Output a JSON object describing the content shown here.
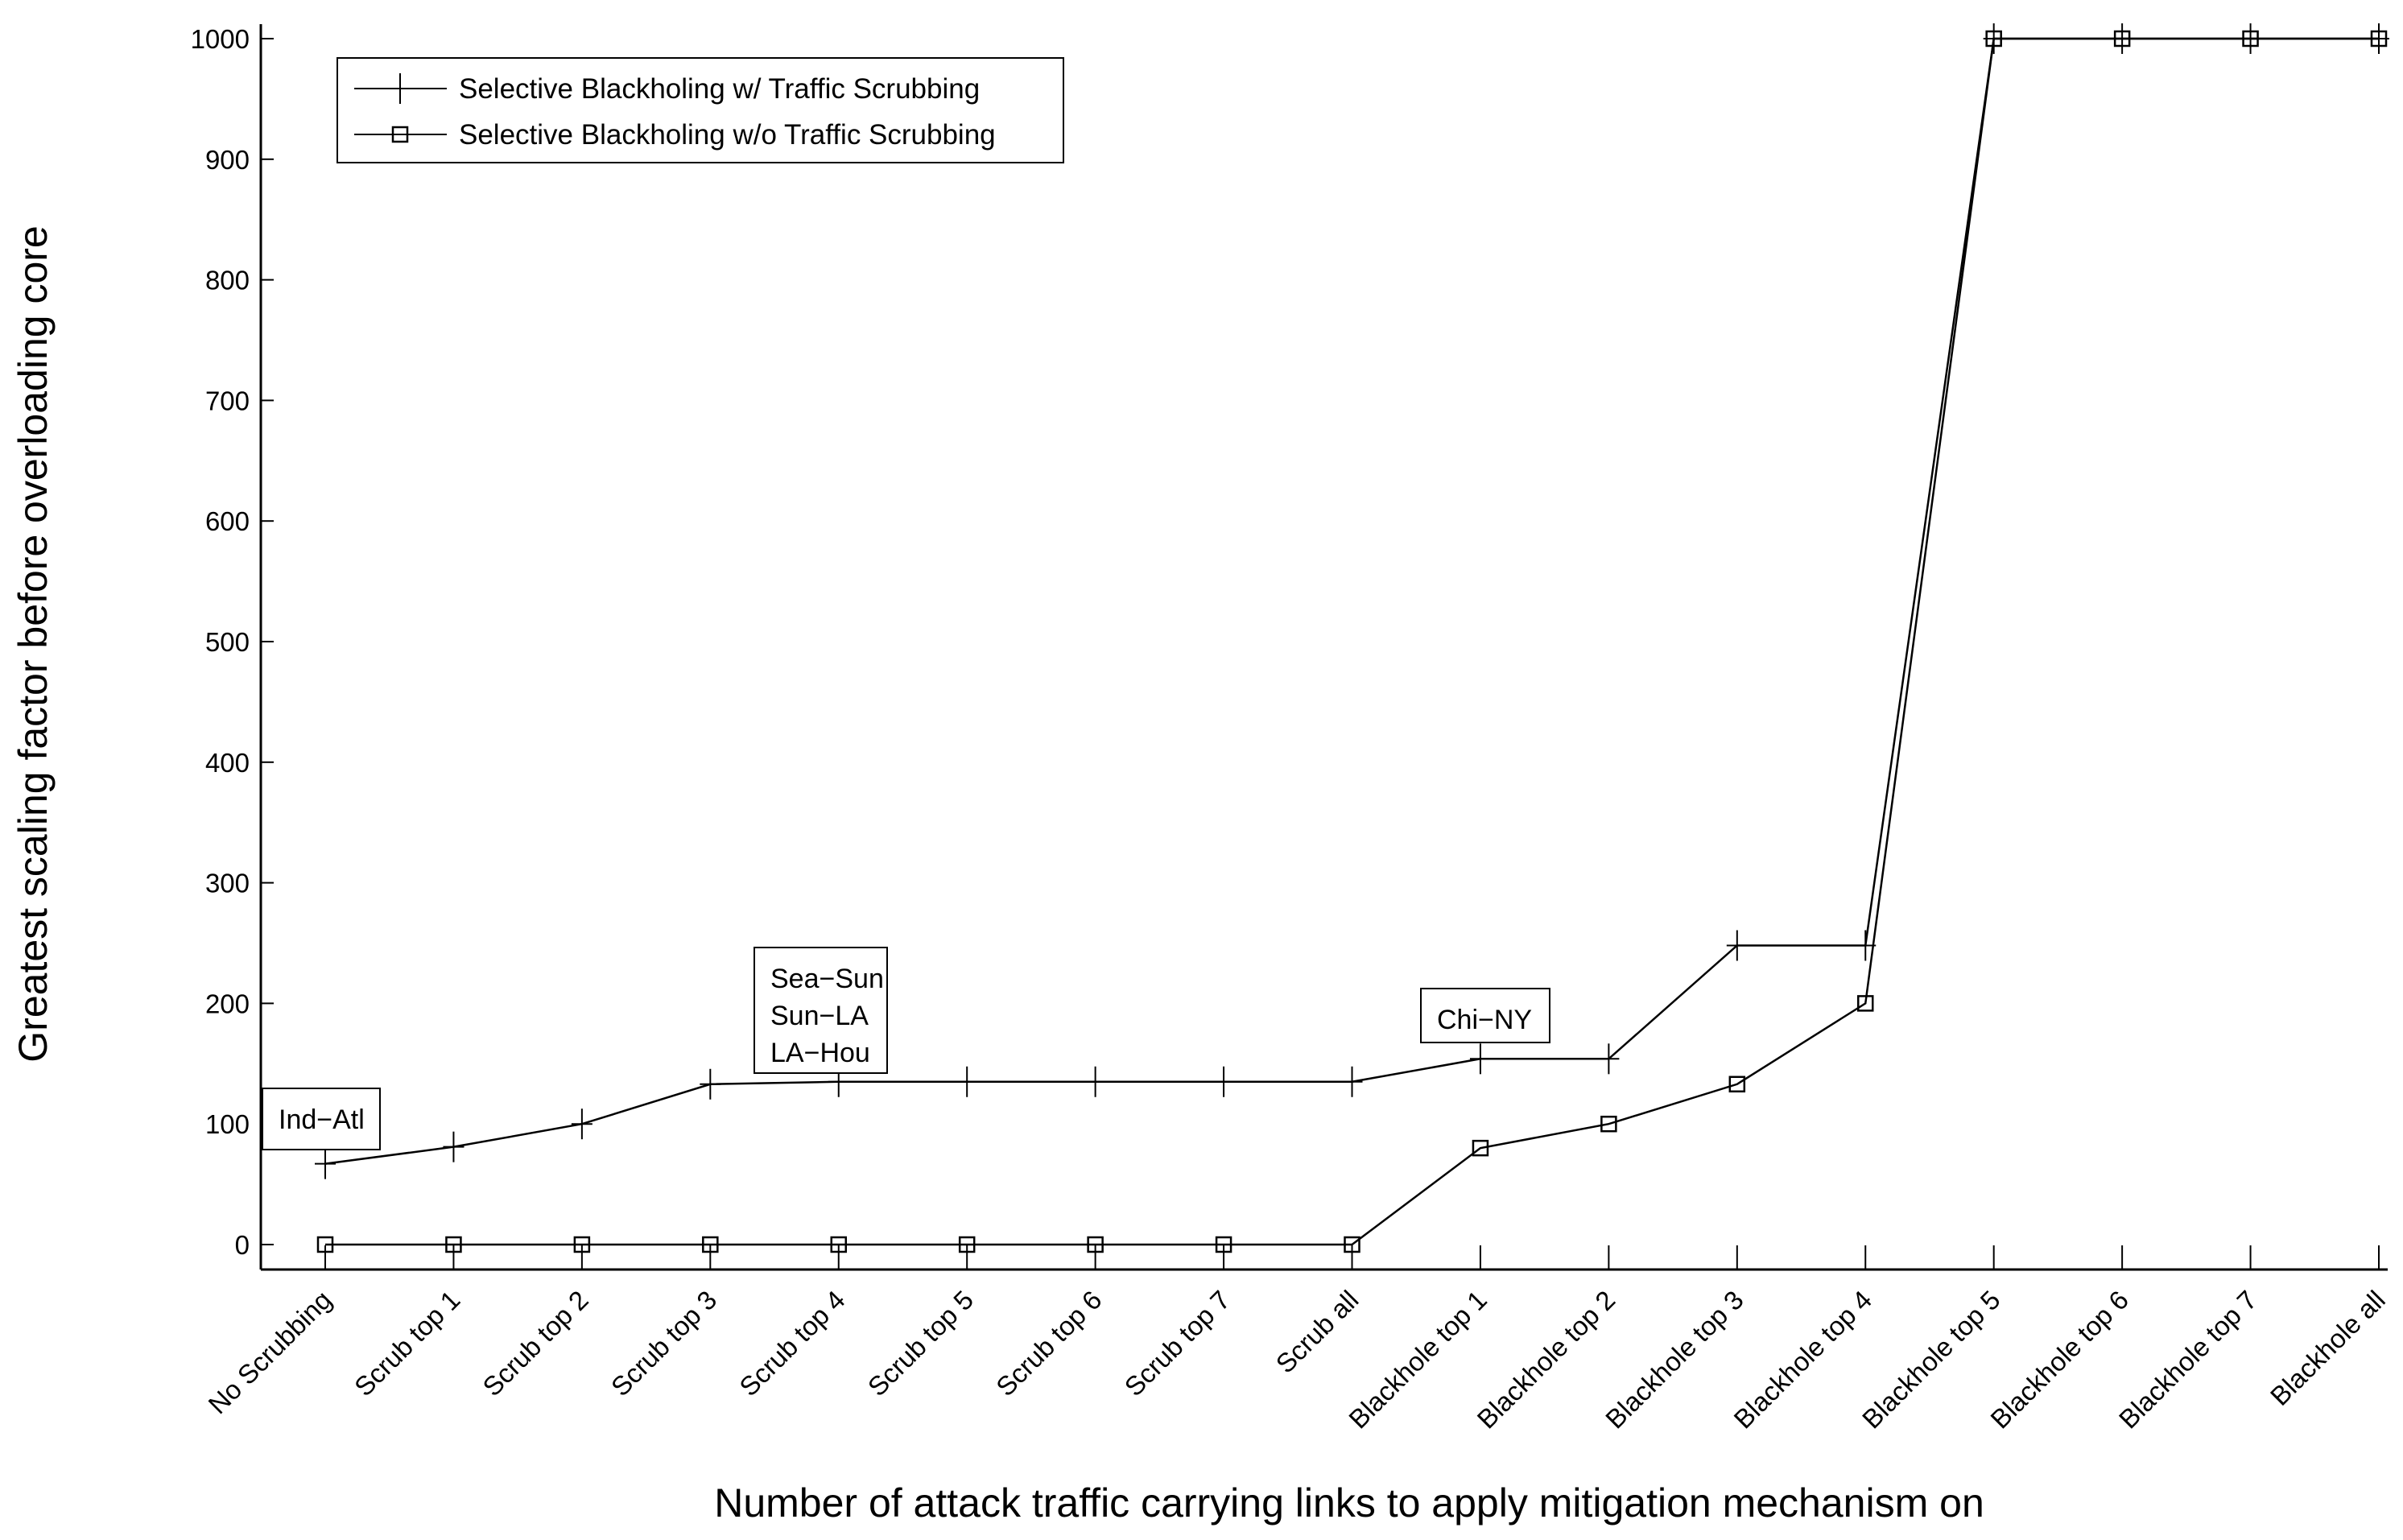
{
  "chart_data": {
    "type": "line",
    "title": "",
    "xlabel": "Number of attack traffic carrying links to apply mitigation mechanism on",
    "ylabel": "Greatest scaling factor before overloading core",
    "ylim": [
      0,
      1000
    ],
    "yticks": [
      0,
      100,
      200,
      300,
      400,
      500,
      600,
      700,
      800,
      900,
      1000
    ],
    "grid": false,
    "legend_position": "top-left",
    "categories": [
      "No Scrubbing",
      "Scrub top 1",
      "Scrub top 2",
      "Scrub top 3",
      "Scrub top 4",
      "Scrub top 5",
      "Scrub top 6",
      "Scrub top 7",
      "Scrub all",
      "Blackhole top 1",
      "Blackhole top 2",
      "Blackhole top 3",
      "Blackhole top 4",
      "Blackhole top 5",
      "Blackhole top 6",
      "Blackhole top 7",
      "Blackhole all"
    ],
    "series": [
      {
        "name": "Selective Blackholing w/ Traffic Scrubbing",
        "marker": "plus",
        "values": [
          67,
          81,
          100,
          133,
          135,
          135,
          135,
          135,
          135,
          154,
          154,
          248,
          248,
          1000,
          1000,
          1000,
          1000
        ]
      },
      {
        "name": "Selective Blackholing w/o Traffic Scrubbing",
        "marker": "square",
        "values": [
          0,
          0,
          0,
          0,
          0,
          0,
          0,
          0,
          0,
          80,
          100,
          133,
          200,
          1000,
          1000,
          1000,
          1000
        ]
      }
    ],
    "annotations": [
      {
        "lines": [
          "Ind−Atl"
        ],
        "category": "No Scrubbing"
      },
      {
        "lines": [
          "Sea−Sun",
          "Sun−LA",
          "LA−Hou"
        ],
        "category": "Scrub top 4"
      },
      {
        "lines": [
          "Chi−NY"
        ],
        "category": "Blackhole top 1"
      }
    ]
  }
}
